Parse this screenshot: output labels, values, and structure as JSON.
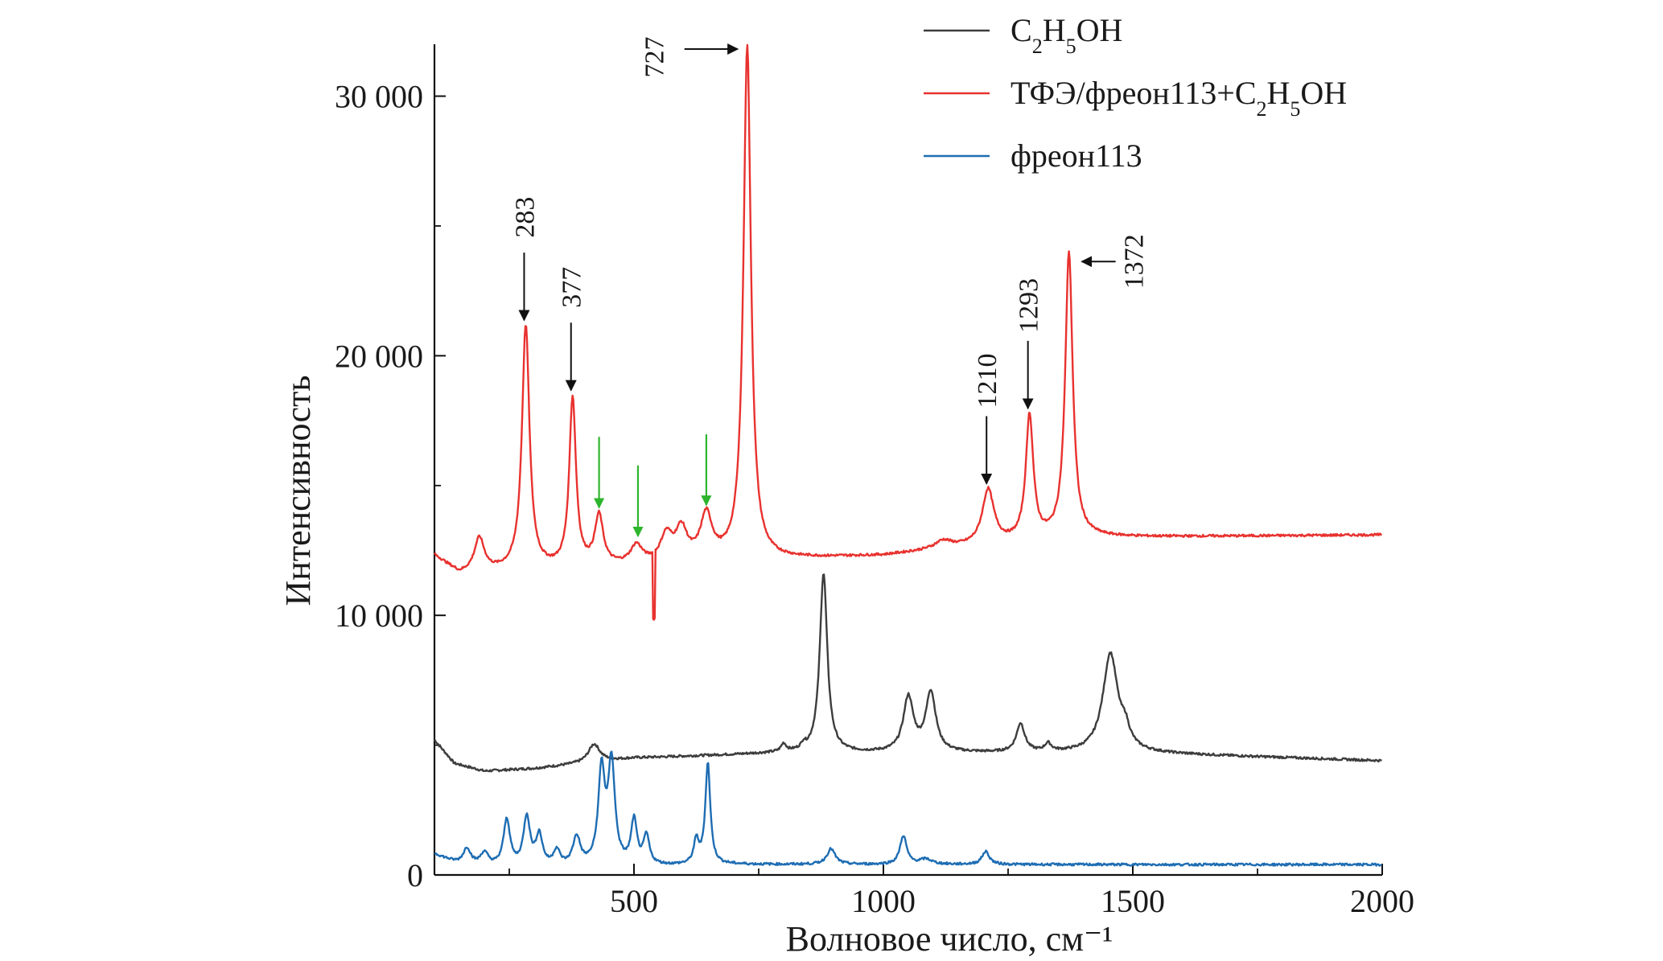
{
  "chart_data": {
    "type": "line",
    "title": "",
    "xlabel": "Волновое число, см⁻¹",
    "ylabel": "Интенсивность",
    "xlim": [
      100,
      2000
    ],
    "ylim": [
      0,
      32000
    ],
    "x_ticks": [
      500,
      1000,
      1500,
      2000
    ],
    "x_tick_labels": [
      "500",
      "1000",
      "1500",
      "2000"
    ],
    "y_ticks": [
      0,
      10000,
      20000,
      30000
    ],
    "y_tick_labels": [
      "0",
      "10 000",
      "20 000",
      "30 000"
    ],
    "grid": false,
    "legend_position": "top-right",
    "series": [
      {
        "name": "C2H5OH",
        "legend_main": "C",
        "legend_parts": [
          {
            "t": "C",
            "sub": false
          },
          {
            "t": "2",
            "sub": true
          },
          {
            "t": "H",
            "sub": false
          },
          {
            "t": "5",
            "sub": true
          },
          {
            "t": "OH",
            "sub": false
          }
        ],
        "color": "#3d3d3d",
        "baseline": [
          [
            100,
            5200
          ],
          [
            140,
            4300
          ],
          [
            200,
            4000
          ],
          [
            300,
            4100
          ],
          [
            500,
            4500
          ],
          [
            800,
            4700
          ],
          [
            1000,
            4700
          ],
          [
            1500,
            4700
          ],
          [
            2000,
            4400
          ]
        ],
        "peaks": [
          [
            420,
            700,
            14
          ],
          [
            800,
            300,
            6
          ],
          [
            840,
            200,
            5
          ],
          [
            880,
            6900,
            9
          ],
          [
            1050,
            2100,
            12
          ],
          [
            1095,
            2300,
            12
          ],
          [
            1275,
            1100,
            10
          ],
          [
            1330,
            300,
            8
          ],
          [
            1455,
            3800,
            18
          ],
          [
            1485,
            600,
            10
          ]
        ]
      },
      {
        "name": "ТФЭ/фреон113+C2H5OH",
        "legend_parts": [
          {
            "t": "ТФЭ/фреон113+C",
            "sub": false
          },
          {
            "t": "2",
            "sub": true
          },
          {
            "t": "H",
            "sub": false
          },
          {
            "t": "5",
            "sub": true
          },
          {
            "t": "OH",
            "sub": false
          }
        ],
        "color": "#e8322f",
        "baseline": [
          [
            100,
            12300
          ],
          [
            150,
            11600
          ],
          [
            250,
            11700
          ],
          [
            500,
            11900
          ],
          [
            700,
            12100
          ],
          [
            1000,
            12300
          ],
          [
            1150,
            12600
          ],
          [
            1400,
            13000
          ],
          [
            2000,
            13100
          ]
        ],
        "peaks": [
          [
            190,
            1300,
            12
          ],
          [
            283,
            9400,
            9
          ],
          [
            377,
            6500,
            8
          ],
          [
            430,
            1900,
            10
          ],
          [
            505,
            700,
            14
          ],
          [
            565,
            1000,
            14
          ],
          [
            595,
            1200,
            14
          ],
          [
            645,
            1700,
            14
          ],
          [
            727,
            19800,
            9
          ],
          [
            1120,
            300,
            20
          ],
          [
            1210,
            2100,
            14
          ],
          [
            1293,
            4800,
            9
          ],
          [
            1372,
            11000,
            9
          ]
        ],
        "spike": [
          540,
          -2600
        ]
      },
      {
        "name": "фреон113",
        "legend_parts": [
          {
            "t": "фреон113",
            "sub": false
          }
        ],
        "color": "#1e6db3",
        "baseline": [
          [
            100,
            800
          ],
          [
            160,
            300
          ],
          [
            300,
            250
          ],
          [
            700,
            400
          ],
          [
            1000,
            400
          ],
          [
            2000,
            400
          ]
        ],
        "peaks": [
          [
            165,
            700,
            10
          ],
          [
            200,
            500,
            10
          ],
          [
            245,
            1800,
            8
          ],
          [
            285,
            1900,
            8
          ],
          [
            310,
            1200,
            8
          ],
          [
            345,
            600,
            8
          ],
          [
            385,
            1100,
            9
          ],
          [
            435,
            3600,
            8
          ],
          [
            455,
            3900,
            8
          ],
          [
            500,
            1700,
            7
          ],
          [
            525,
            1100,
            7
          ],
          [
            625,
            900,
            6
          ],
          [
            648,
            3900,
            6
          ],
          [
            895,
            600,
            10
          ],
          [
            1040,
            1100,
            8
          ],
          [
            1085,
            200,
            15
          ],
          [
            1205,
            500,
            9
          ]
        ]
      }
    ],
    "annotations": [
      {
        "label": "283",
        "x": 283,
        "y": 21000,
        "direction": "down",
        "rotated": true,
        "color": "#111111"
      },
      {
        "label": "377",
        "x": 377,
        "y": 18300,
        "direction": "down",
        "rotated": true,
        "color": "#111111"
      },
      {
        "label": "727",
        "x": 727,
        "y": 32000,
        "direction": "right",
        "rotated": true,
        "color": "#111111"
      },
      {
        "label": "1210",
        "x": 1210,
        "y": 14700,
        "direction": "down",
        "rotated": true,
        "color": "#111111"
      },
      {
        "label": "1293",
        "x": 1293,
        "y": 17600,
        "direction": "down",
        "rotated": true,
        "color": "#111111"
      },
      {
        "label": "1372",
        "x": 1372,
        "y": 24000,
        "direction": "left",
        "rotated": true,
        "color": "#111111"
      }
    ],
    "green_arrows": [
      {
        "x": 430,
        "y": 13900,
        "color": "#2db52d"
      },
      {
        "x": 508,
        "y": 12800,
        "color": "#2db52d"
      },
      {
        "x": 645,
        "y": 14000,
        "color": "#2db52d"
      }
    ]
  }
}
